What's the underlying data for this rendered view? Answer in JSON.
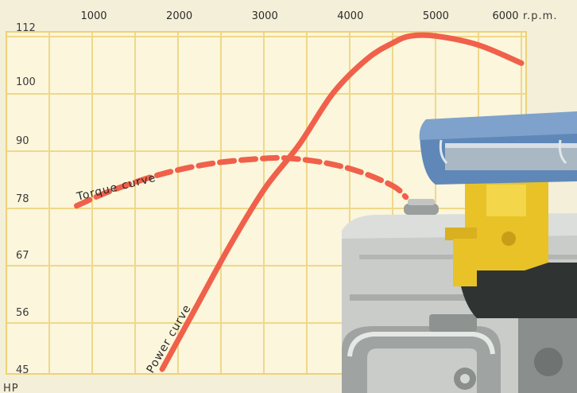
{
  "chart_data": {
    "type": "line",
    "x_ticks": [
      "1000",
      "2000",
      "3000",
      "4000",
      "5000",
      "6000"
    ],
    "x_unit": "r.p.m.",
    "y_ticks": [
      "45",
      "56",
      "67",
      "78",
      "90",
      "100",
      "112"
    ],
    "y_unit": "HP",
    "xlim": [
      500,
      6500
    ],
    "ylim": [
      45,
      112
    ],
    "grid": true,
    "series": [
      {
        "name": "Power curve",
        "style": "solid",
        "color": "#f0604a",
        "x": [
          1800,
          2200,
          2600,
          3000,
          3400,
          3800,
          4200,
          4500,
          4700,
          5000,
          5500,
          6000
        ],
        "y": [
          45,
          57,
          69,
          80,
          89,
          98,
          105,
          108.5,
          110,
          110,
          108,
          104
        ]
      },
      {
        "name": "Torque curve",
        "style": "dashed",
        "color": "#f0604a",
        "x": [
          800,
          1200,
          1800,
          2400,
          3000,
          3300,
          3700,
          4100,
          4500,
          4650
        ],
        "y": [
          76.5,
          79.5,
          83,
          85.2,
          86.2,
          86.2,
          85.3,
          83.5,
          80.5,
          78.2
        ]
      }
    ],
    "annotations": [
      {
        "text": "Power curve",
        "target": "Power curve"
      },
      {
        "text": "Torque curve",
        "target": "Torque curve"
      }
    ]
  },
  "illustration": {
    "subject": "engine-carburetor-illustration"
  }
}
